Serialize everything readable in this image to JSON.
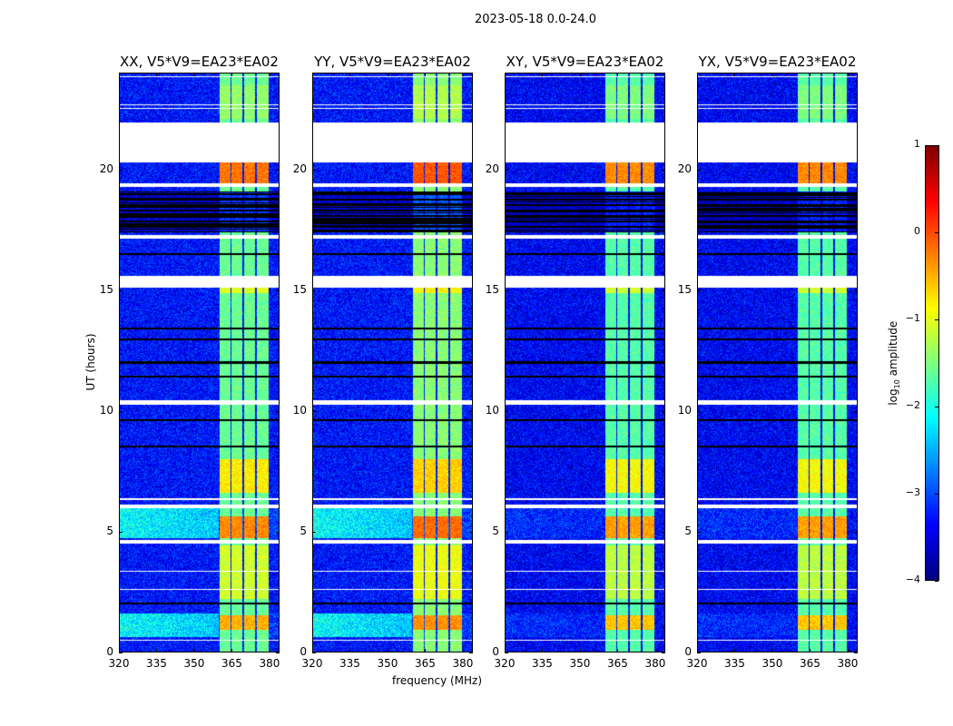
{
  "suptitle": "2023-05-18 0.0-24.0",
  "chart_data": {
    "type": "heatmap",
    "xlabel": "frequency (MHz)",
    "ylabel": "UT (hours)",
    "xlim": [
      320,
      384
    ],
    "ylim": [
      0,
      24
    ],
    "xticks": [
      320,
      335,
      350,
      365,
      380
    ],
    "yticks": [
      0,
      5,
      10,
      15,
      20
    ],
    "colormap": "jet",
    "colorbar": {
      "label": "log10 amplitude",
      "label_base": "log",
      "label_sub": "10",
      "label_rest": " amplitude",
      "range": [
        -4,
        1
      ],
      "ticks": [
        1,
        0,
        -1,
        -2,
        -3,
        -4
      ],
      "tick_labels": [
        "1",
        "0",
        "−1",
        "−2",
        "−3",
        "−4"
      ]
    },
    "panels": [
      {
        "title": "XX, V5*V9=EA23*EA02",
        "bg_level": -3.3,
        "lowfreq_boost": 1.0,
        "band_offset": 0.0
      },
      {
        "title": "YY, V5*V9=EA23*EA02",
        "bg_level": -3.3,
        "lowfreq_boost": 1.0,
        "band_offset": 0.15
      },
      {
        "title": "XY, V5*V9=EA23*EA02",
        "bg_level": -3.4,
        "lowfreq_boost": 0.2,
        "band_offset": -0.1
      },
      {
        "title": "YX, V5*V9=EA23*EA02",
        "bg_level": -3.4,
        "lowfreq_boost": 0.2,
        "band_offset": -0.1
      }
    ],
    "band_mhz": [
      360.4,
      380.0
    ],
    "band_gaps_mhz": [
      364.8,
      369.8,
      374.9
    ],
    "band_levels": [
      {
        "ut": [
          19.4,
          20.3
        ],
        "value": -0.2
      },
      {
        "ut": [
          4.7,
          5.6
        ],
        "value": -0.3
      },
      {
        "ut": [
          0.9,
          1.5
        ],
        "value": -0.5
      },
      {
        "ut": [
          6.6,
          8.0
        ],
        "value": -0.8
      },
      {
        "ut": [
          2.2,
          4.4
        ],
        "value": -1.1
      },
      {
        "ut": [
          14.9,
          15.1
        ],
        "value": -1.0
      },
      {
        "ut": [
          22.1,
          23.5
        ],
        "value": -1.4
      }
    ],
    "band_default": -1.6,
    "lowfreq_bright_ut": [
      [
        0.6,
        1.6
      ],
      [
        4.7,
        5.95
      ]
    ],
    "flagged_ut": [
      [
        20.3,
        21.95
      ],
      [
        19.3,
        19.45
      ],
      [
        17.15,
        17.3
      ],
      [
        15.1,
        15.6
      ],
      [
        10.25,
        10.45
      ],
      [
        5.95,
        6.1
      ],
      [
        4.5,
        4.65
      ],
      [
        22.52,
        22.58
      ],
      [
        22.68,
        22.72
      ],
      [
        23.85,
        23.9
      ],
      [
        6.3,
        6.35
      ],
      [
        2.55,
        2.6
      ],
      [
        3.3,
        3.35
      ],
      [
        0.45,
        0.5
      ]
    ],
    "dark_ut": [
      [
        17.4,
        19.1
      ]
    ],
    "dark_lines_ut": [
      13.4,
      12.95,
      12.0,
      11.4,
      8.5,
      2.0,
      16.5,
      9.6
    ]
  }
}
